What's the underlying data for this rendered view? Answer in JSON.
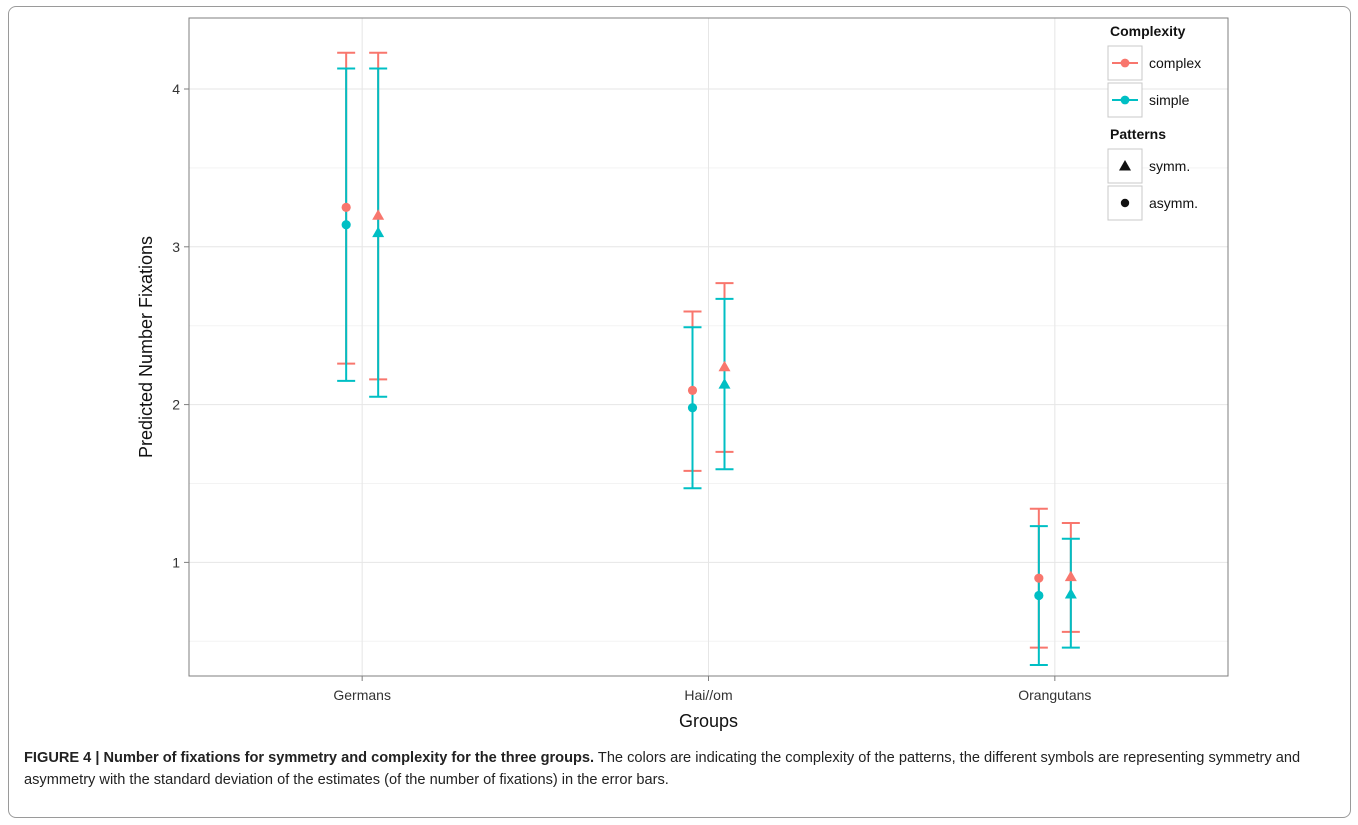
{
  "chart_data": {
    "type": "scatter",
    "xlabel": "Groups",
    "ylabel": "Predicted Number Fixations",
    "categories": [
      "Germans",
      "Hai//om",
      "Orangutans"
    ],
    "yticks": [
      1,
      2,
      3,
      4
    ],
    "ylim": [
      0.28,
      4.45
    ],
    "grid": true,
    "legend_position": "top-right",
    "legends": [
      {
        "title": "Complexity",
        "entries": [
          {
            "label": "complex",
            "color": "#F8766D"
          },
          {
            "label": "simple",
            "color": "#00BFC4"
          }
        ]
      },
      {
        "title": "Patterns",
        "entries": [
          {
            "label": "symm.",
            "shape": "triangle"
          },
          {
            "label": "asymm.",
            "shape": "circle"
          }
        ]
      }
    ],
    "series": [
      {
        "complexity": "complex",
        "pattern": "asymm.",
        "color": "#F8766D",
        "shape": "circle",
        "y": [
          3.25,
          2.09,
          0.9
        ],
        "ymin": [
          2.26,
          1.58,
          0.46
        ],
        "ymax": [
          4.23,
          2.59,
          1.34
        ]
      },
      {
        "complexity": "simple",
        "pattern": "asymm.",
        "color": "#00BFC4",
        "shape": "circle",
        "y": [
          3.14,
          1.98,
          0.79
        ],
        "ymin": [
          2.15,
          1.47,
          0.35
        ],
        "ymax": [
          4.13,
          2.49,
          1.23
        ]
      },
      {
        "complexity": "complex",
        "pattern": "symm.",
        "color": "#F8766D",
        "shape": "triangle",
        "y": [
          3.2,
          2.24,
          0.91
        ],
        "ymin": [
          2.16,
          1.7,
          0.56
        ],
        "ymax": [
          4.23,
          2.77,
          1.25
        ]
      },
      {
        "complexity": "simple",
        "pattern": "symm.",
        "color": "#00BFC4",
        "shape": "triangle",
        "y": [
          3.09,
          2.13,
          0.8
        ],
        "ymin": [
          2.05,
          1.59,
          0.46
        ],
        "ymax": [
          4.13,
          2.67,
          1.15
        ]
      }
    ]
  },
  "caption": {
    "label": "FIGURE 4 | Number of fixations for symmetry and complexity for the three groups.",
    "text": " The colors are indicating the complexity of the patterns, the different symbols are representing symmetry and asymmetry with the standard deviation of the estimates (of the number of fixations) in the error bars."
  }
}
